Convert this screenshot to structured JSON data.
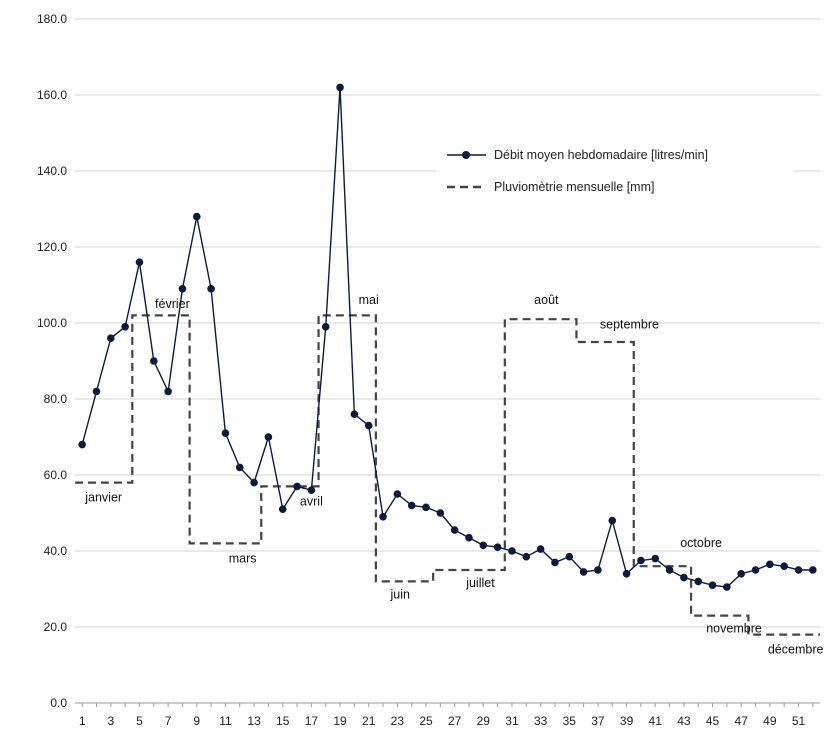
{
  "chart_data": {
    "type": "line",
    "title": "",
    "xlabel": "",
    "ylabel": "",
    "ylim": [
      0,
      180
    ],
    "grid": true,
    "legend_placement": "top-right",
    "y_ticks": [
      "0.0",
      "20.0",
      "40.0",
      "60.0",
      "80.0",
      "100.0",
      "120.0",
      "140.0",
      "160.0",
      "180.0"
    ],
    "x_ticks": [
      "1",
      "3",
      "5",
      "7",
      "9",
      "11",
      "13",
      "15",
      "17",
      "19",
      "21",
      "23",
      "25",
      "27",
      "29",
      "31",
      "33",
      "35",
      "37",
      "39",
      "41",
      "43",
      "45",
      "47",
      "49",
      "51"
    ],
    "x": [
      1,
      2,
      3,
      4,
      5,
      6,
      7,
      8,
      9,
      10,
      11,
      12,
      13,
      14,
      15,
      16,
      17,
      18,
      19,
      20,
      21,
      22,
      23,
      24,
      25,
      26,
      27,
      28,
      29,
      30,
      31,
      32,
      33,
      34,
      35,
      36,
      37,
      38,
      39,
      40,
      41,
      42,
      43,
      44,
      45,
      46,
      47,
      48,
      49,
      50,
      51,
      52
    ],
    "series": [
      {
        "name": "Débit moyen hebdomadaire [litres/min]",
        "style": "solid-with-markers",
        "color": "#0d1b3e",
        "values": [
          68,
          82,
          96,
          99,
          116,
          90,
          82,
          109,
          128,
          109,
          71,
          62,
          58,
          70,
          51,
          57,
          56,
          99,
          162,
          76,
          73,
          49,
          55,
          52,
          51.5,
          50,
          45.5,
          43.5,
          41.5,
          41,
          40,
          38.5,
          40.5,
          37,
          38.5,
          34.5,
          35,
          48,
          34,
          37.5,
          38,
          35,
          33,
          32,
          31,
          30.5,
          34,
          35,
          36.5,
          36,
          35,
          35
        ]
      },
      {
        "name": "Pluviomètrie mensuelle [mm]",
        "style": "dashed",
        "color": "#444444",
        "values": [
          58,
          58,
          58,
          58,
          102,
          102,
          102,
          102,
          42,
          42,
          42,
          42,
          42,
          57,
          57,
          57,
          57,
          102,
          102,
          102,
          102,
          32,
          32,
          32,
          32,
          35,
          35,
          35,
          35,
          35,
          101,
          101,
          101,
          101,
          101,
          95,
          95,
          95,
          95,
          36,
          36,
          36,
          36,
          23,
          23,
          23,
          23,
          18,
          18,
          18,
          18,
          18
        ]
      }
    ],
    "annotations": [
      {
        "text": "janvier",
        "x": 2.5,
        "y": 53
      },
      {
        "text": "février",
        "x": 7.3,
        "y": 104
      },
      {
        "text": "mars",
        "x": 12.2,
        "y": 37
      },
      {
        "text": "avril",
        "x": 17,
        "y": 52
      },
      {
        "text": "mai",
        "x": 21,
        "y": 105
      },
      {
        "text": "juin",
        "x": 23.2,
        "y": 27.5
      },
      {
        "text": "juillet",
        "x": 28.8,
        "y": 30.5
      },
      {
        "text": "août",
        "x": 33.4,
        "y": 105
      },
      {
        "text": "septembre",
        "x": 39.2,
        "y": 98.5
      },
      {
        "text": "octobre",
        "x": 44.2,
        "y": 41
      },
      {
        "text": "novembre",
        "x": 46.5,
        "y": 18.5
      },
      {
        "text": "décembre",
        "x": 50.8,
        "y": 13
      }
    ]
  }
}
